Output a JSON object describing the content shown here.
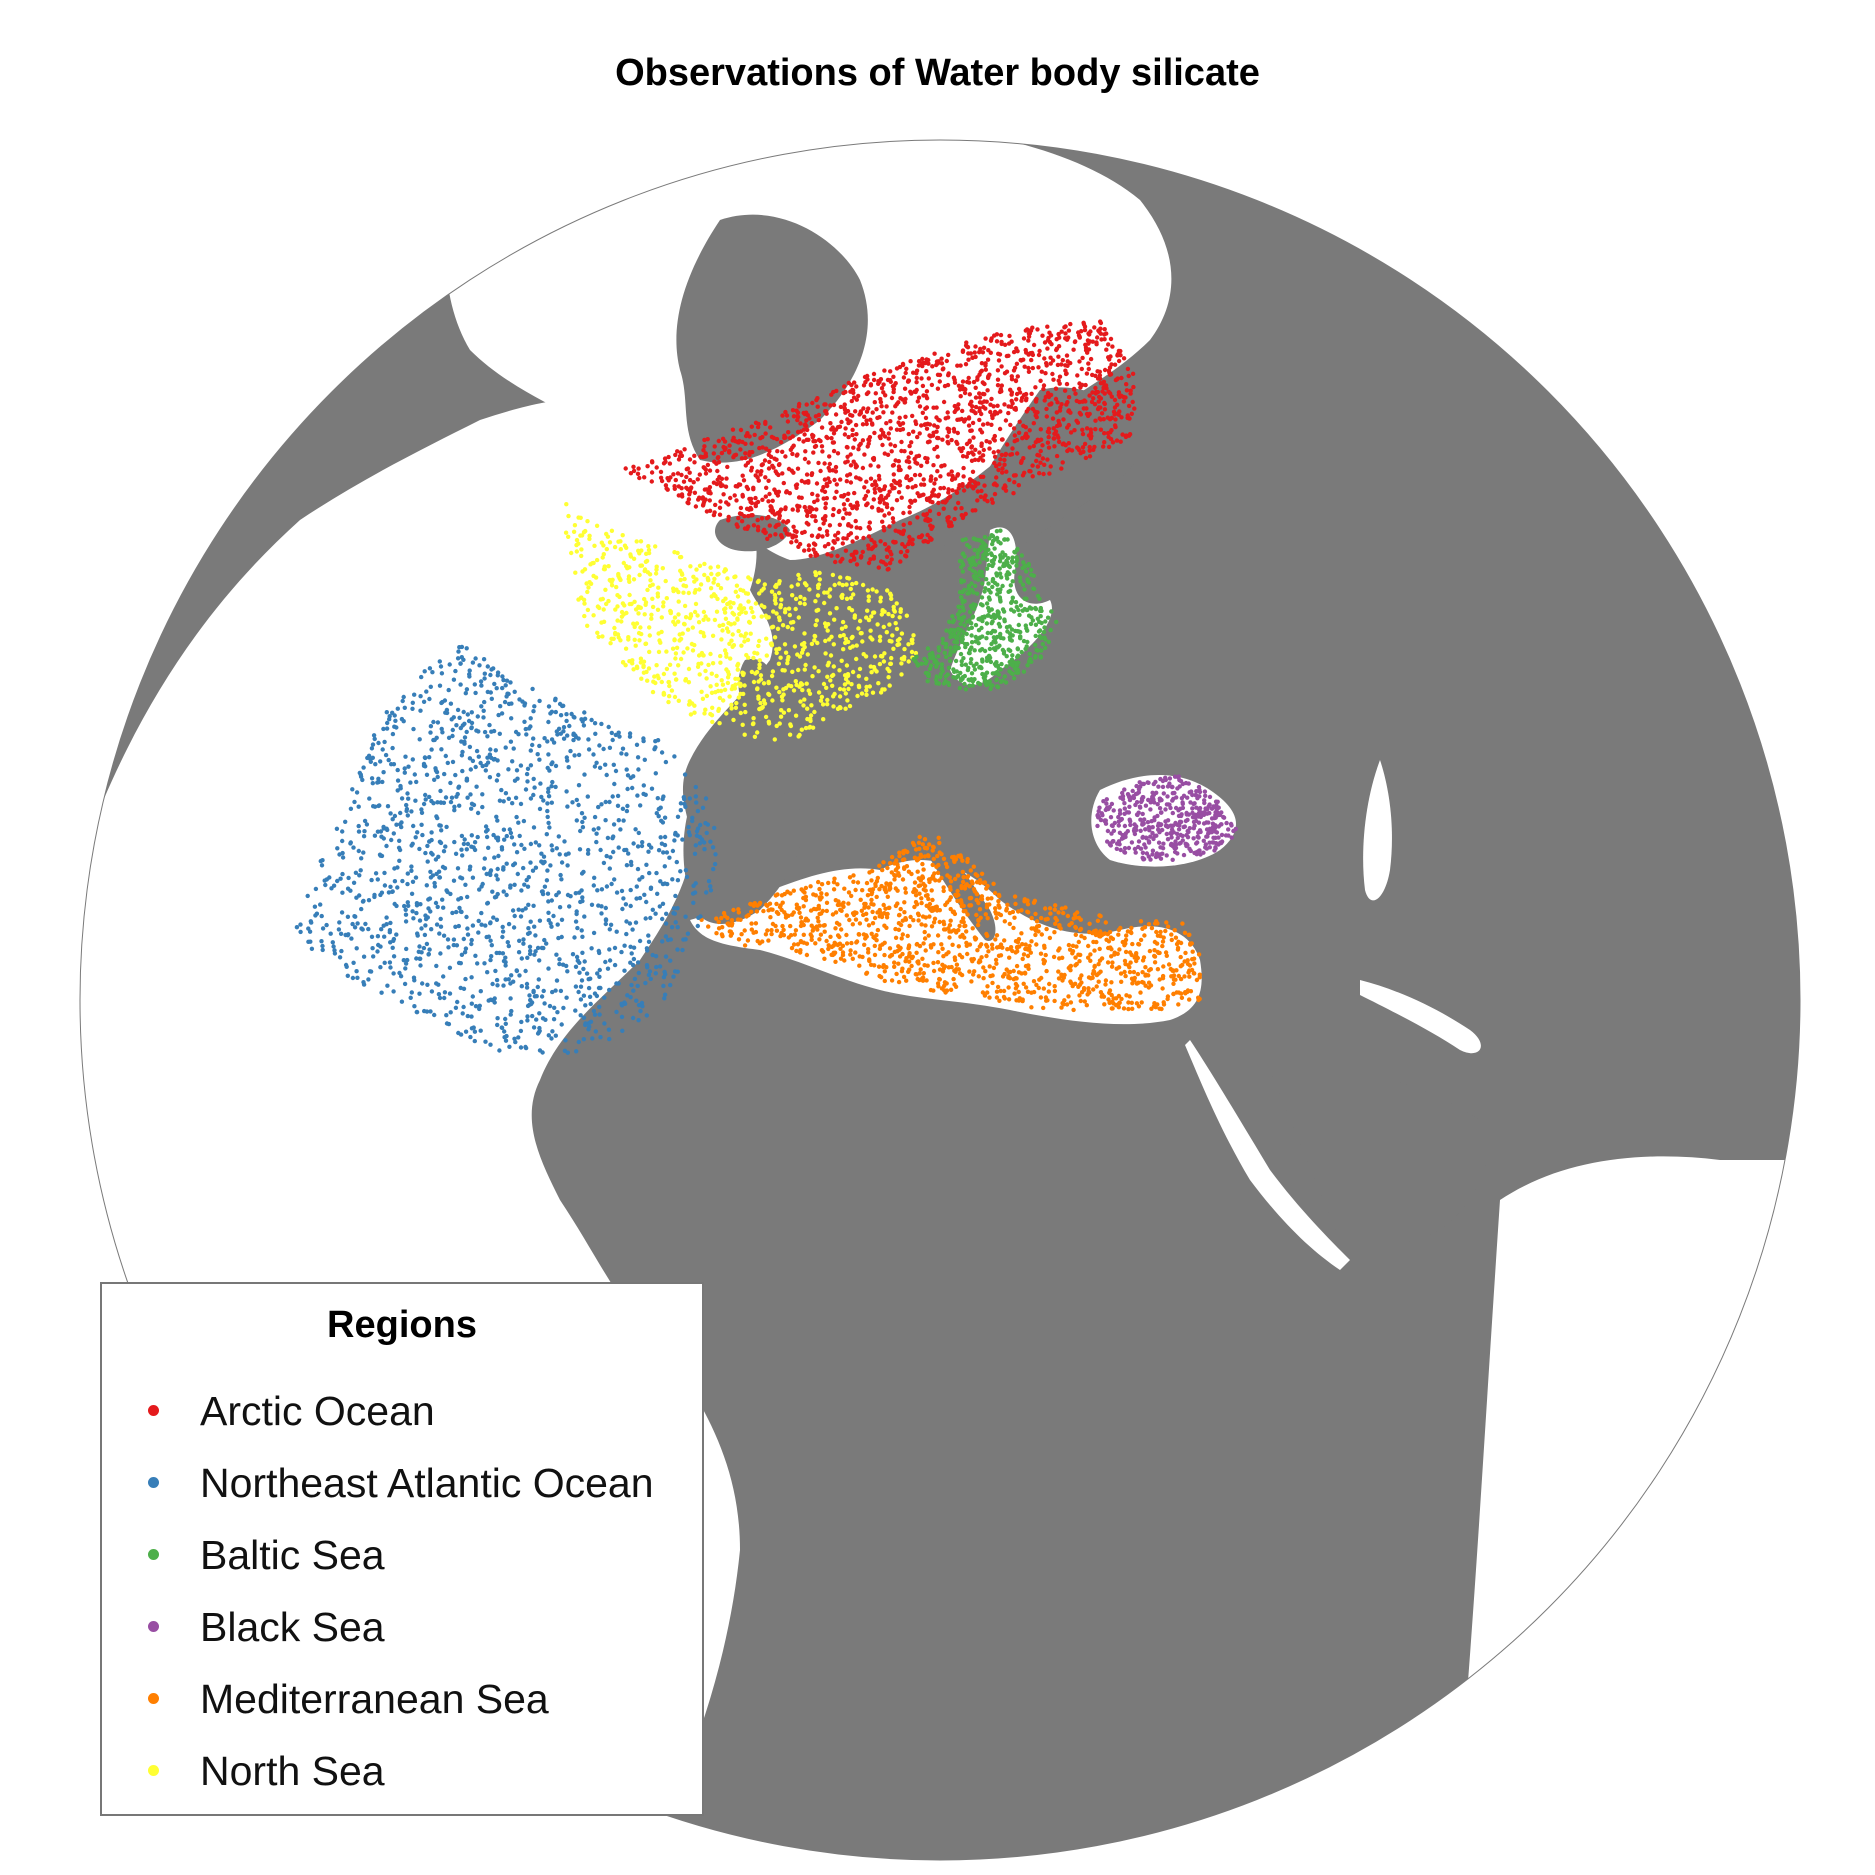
{
  "title": "Observations of Water body silicate",
  "colors": {
    "background": "#ffffff",
    "land": "#7a7a7a",
    "ocean": "#ffffff",
    "legend_border": "#777777"
  },
  "legend": {
    "title": "Regions",
    "items": [
      {
        "label": "Arctic Ocean",
        "color": "#e41a1c"
      },
      {
        "label": "Northeast Atlantic Ocean",
        "color": "#377eb8"
      },
      {
        "label": "Baltic Sea",
        "color": "#4daf4a"
      },
      {
        "label": "Black Sea",
        "color": "#984ea3"
      },
      {
        "label": "Mediterranean Sea",
        "color": "#ff7f00"
      },
      {
        "label": "North Sea",
        "color": "#ffff33"
      }
    ]
  }
}
